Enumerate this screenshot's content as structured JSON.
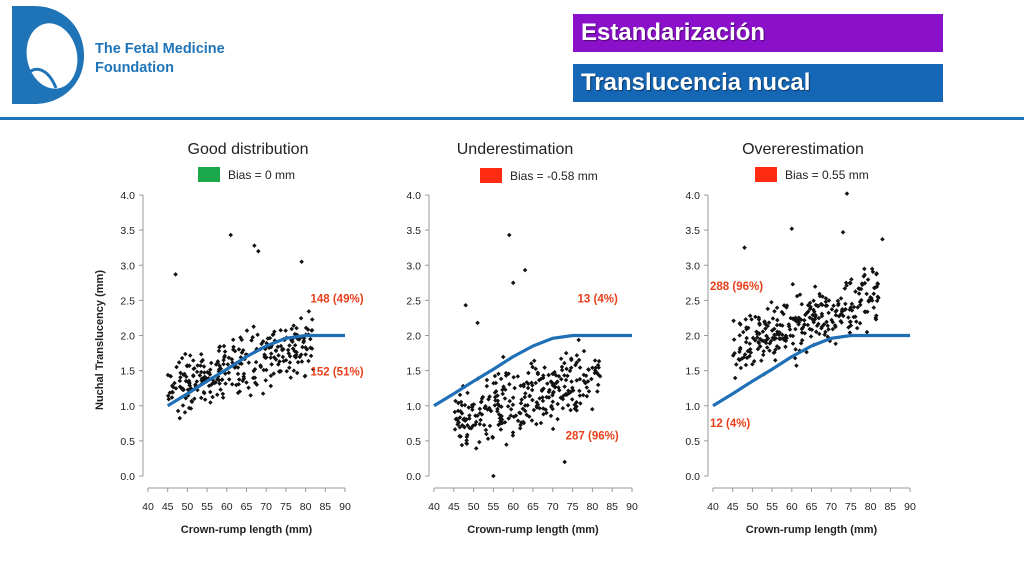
{
  "brand": {
    "line1": "The Fetal Medicine",
    "line2": "Foundation",
    "color": "#1f74b8"
  },
  "header": {
    "title1": "Estandarización",
    "title2": "Translucencia nucal",
    "title1_color": "#8a10c9",
    "title2_color": "#1566b5"
  },
  "chart_data": [
    {
      "type": "scatter",
      "title": "Good distribution",
      "legend": {
        "label": "Bias = 0 mm",
        "color": "#1aa84b"
      },
      "xlabel": "Crown-rump length (mm)",
      "ylabel": "Nuchal Translucency (mm)",
      "xlim": [
        40,
        90
      ],
      "ylim": [
        0,
        4
      ],
      "xticks": [
        "40",
        "45",
        "50",
        "55",
        "60",
        "65",
        "70",
        "75",
        "80",
        "85",
        "90"
      ],
      "yticks": [
        "0.0",
        "0.5",
        "1.0",
        "1.5",
        "2.0",
        "2.5",
        "3.0",
        "3.5",
        "4.0"
      ],
      "series": [
        {
          "values": [
            [
              45,
              1.0
            ],
            [
              50,
              1.17
            ],
            [
              55,
              1.35
            ],
            [
              60,
              1.52
            ],
            [
              65,
              1.7
            ],
            [
              70,
              1.85
            ],
            [
              75,
              1.96
            ],
            [
              80,
              2.0
            ],
            [
              85,
              2.0
            ],
            [
              90,
              2.0
            ]
          ]
        }
      ],
      "annotations": [
        {
          "text": "148 (49%)",
          "x": 82,
          "y": 2.47,
          "color": "#e8401c"
        },
        {
          "text": "152 (51%)",
          "x": 82,
          "y": 1.43,
          "color": "#e8401c"
        }
      ],
      "mean": 1.6,
      "spread": 0.3,
      "outliers": [
        [
          47,
          2.87
        ],
        [
          61,
          3.43
        ],
        [
          67,
          3.28
        ],
        [
          68,
          3.2
        ],
        [
          79,
          3.05
        ]
      ]
    },
    {
      "type": "scatter",
      "title": "Underestimation",
      "legend": {
        "label": "Bias = -0.58 mm",
        "color": "#ff2a12"
      },
      "xlabel": "Crown-rump length (mm)",
      "ylabel": "",
      "xlim": [
        40,
        90
      ],
      "ylim": [
        0,
        4
      ],
      "xticks": [
        "40",
        "45",
        "50",
        "55",
        "60",
        "65",
        "70",
        "75",
        "80",
        "85",
        "90"
      ],
      "yticks": [
        "0.0",
        "0.5",
        "1.0",
        "1.5",
        "2.0",
        "2.5",
        "3.0",
        "3.5",
        "4.0"
      ],
      "series": [
        {
          "values": [
            [
              40,
              1.0
            ],
            [
              45,
              1.17
            ],
            [
              50,
              1.35
            ],
            [
              55,
              1.52
            ],
            [
              60,
              1.7
            ],
            [
              65,
              1.85
            ],
            [
              70,
              1.96
            ],
            [
              75,
              2.0
            ],
            [
              80,
              2.0
            ],
            [
              85,
              2.0
            ],
            [
              90,
              2.0
            ]
          ]
        }
      ],
      "annotations": [
        {
          "text": "13 (4%)",
          "x": 77,
          "y": 2.47,
          "color": "#e8401c"
        },
        {
          "text": "287 (96%)",
          "x": 74,
          "y": 0.52,
          "color": "#e8401c"
        }
      ],
      "mean": 1.1,
      "spread": 0.32,
      "outliers": [
        [
          59,
          3.43
        ],
        [
          60,
          2.75
        ],
        [
          63,
          2.93
        ],
        [
          48,
          2.43
        ],
        [
          51,
          2.18
        ],
        [
          55,
          0.0
        ],
        [
          73,
          0.2
        ]
      ]
    },
    {
      "type": "scatter",
      "title": "Overerestimation",
      "legend": {
        "label": "Bias = 0.55 mm",
        "color": "#ff2a12"
      },
      "xlabel": "Crown-rump length (mm)",
      "ylabel": "",
      "xlim": [
        40,
        90
      ],
      "ylim": [
        0,
        4
      ],
      "xticks": [
        "40",
        "45",
        "50",
        "55",
        "60",
        "65",
        "70",
        "75",
        "80",
        "85",
        "90"
      ],
      "yticks": [
        "0.0",
        "0.5",
        "1.0",
        "1.5",
        "2.0",
        "2.5",
        "3.0",
        "3.5",
        "4.0"
      ],
      "series": [
        {
          "values": [
            [
              40,
              1.0
            ],
            [
              45,
              1.17
            ],
            [
              50,
              1.35
            ],
            [
              55,
              1.52
            ],
            [
              60,
              1.7
            ],
            [
              65,
              1.85
            ],
            [
              70,
              1.96
            ],
            [
              75,
              2.0
            ],
            [
              80,
              2.0
            ],
            [
              85,
              2.0
            ],
            [
              90,
              2.0
            ]
          ]
        }
      ],
      "annotations": [
        {
          "text": "288 (96%)",
          "x": 40,
          "y": 2.65,
          "color": "#e8401c"
        },
        {
          "text": "12 (4%)",
          "x": 40,
          "y": 0.7,
          "color": "#e8401c"
        }
      ],
      "mean": 2.2,
      "spread": 0.3,
      "outliers": [
        [
          48,
          3.25
        ],
        [
          60,
          3.52
        ],
        [
          73,
          3.47
        ],
        [
          74,
          4.02
        ],
        [
          83,
          3.37
        ],
        [
          53,
          1.45
        ]
      ]
    }
  ]
}
